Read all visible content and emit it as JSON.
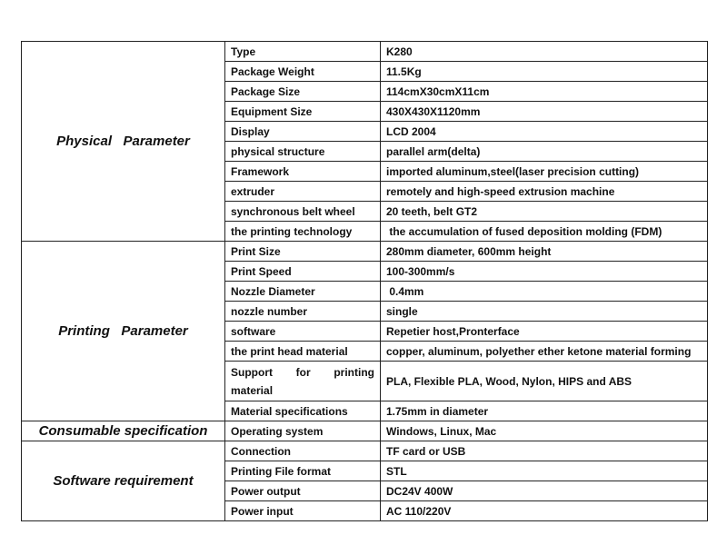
{
  "groups": [
    {
      "label": "Physical   Parameter",
      "rows": [
        {
          "name": "Type",
          "value": "K280"
        },
        {
          "name": "Package Weight",
          "value": "11.5Kg"
        },
        {
          "name": "Package Size",
          "value": "114cmX30cmX11cm"
        },
        {
          "name": "Equipment Size",
          "value": "430X430X1120mm"
        },
        {
          "name": "Display",
          "value": "LCD 2004"
        },
        {
          "name": "physical structure",
          "value": "parallel arm(delta)"
        },
        {
          "name": "Framework",
          "value": "imported aluminum,steel(laser precision cutting)"
        },
        {
          "name": "extruder",
          "value": "remotely and high-speed extrusion machine"
        },
        {
          "name": "synchronous belt wheel",
          "value": "20 teeth, belt GT2"
        },
        {
          "name": "the printing technology",
          "value": " the accumulation of fused deposition molding (FDM)"
        }
      ]
    },
    {
      "label": "Printing   Parameter",
      "rows": [
        {
          "name": "Print Size",
          "value": "280mm diameter, 600mm height"
        },
        {
          "name": "Print Speed",
          "value": "100-300mm/s"
        },
        {
          "name": "Nozzle Diameter",
          "value": " 0.4mm"
        },
        {
          "name": "nozzle number",
          "value": "single"
        },
        {
          "name": "software",
          "value": "Repetier host,Pronterface"
        },
        {
          "name": " the print head material",
          "value": "copper, aluminum, polyether ether ketone material forming"
        },
        {
          "name": "Support for printing material",
          "value": "PLA, Flexible PLA, Wood, Nylon, HIPS and ABS"
        },
        {
          "name": "Material specifications",
          "value": "1.75mm in diameter"
        }
      ]
    },
    {
      "label": "Consumable specification",
      "rows": [
        {
          "name": "Operating system",
          "value": "Windows, Linux, Mac"
        }
      ]
    },
    {
      "label": "Software requirement",
      "rows": [
        {
          "name": "Connection",
          "value": "TF card or USB"
        },
        {
          "name": "Printing File format",
          "value": "STL"
        },
        {
          "name": "Power output",
          "value": "DC24V 400W"
        },
        {
          "name": "Power input",
          "value": "AC 110/220V"
        }
      ]
    }
  ]
}
